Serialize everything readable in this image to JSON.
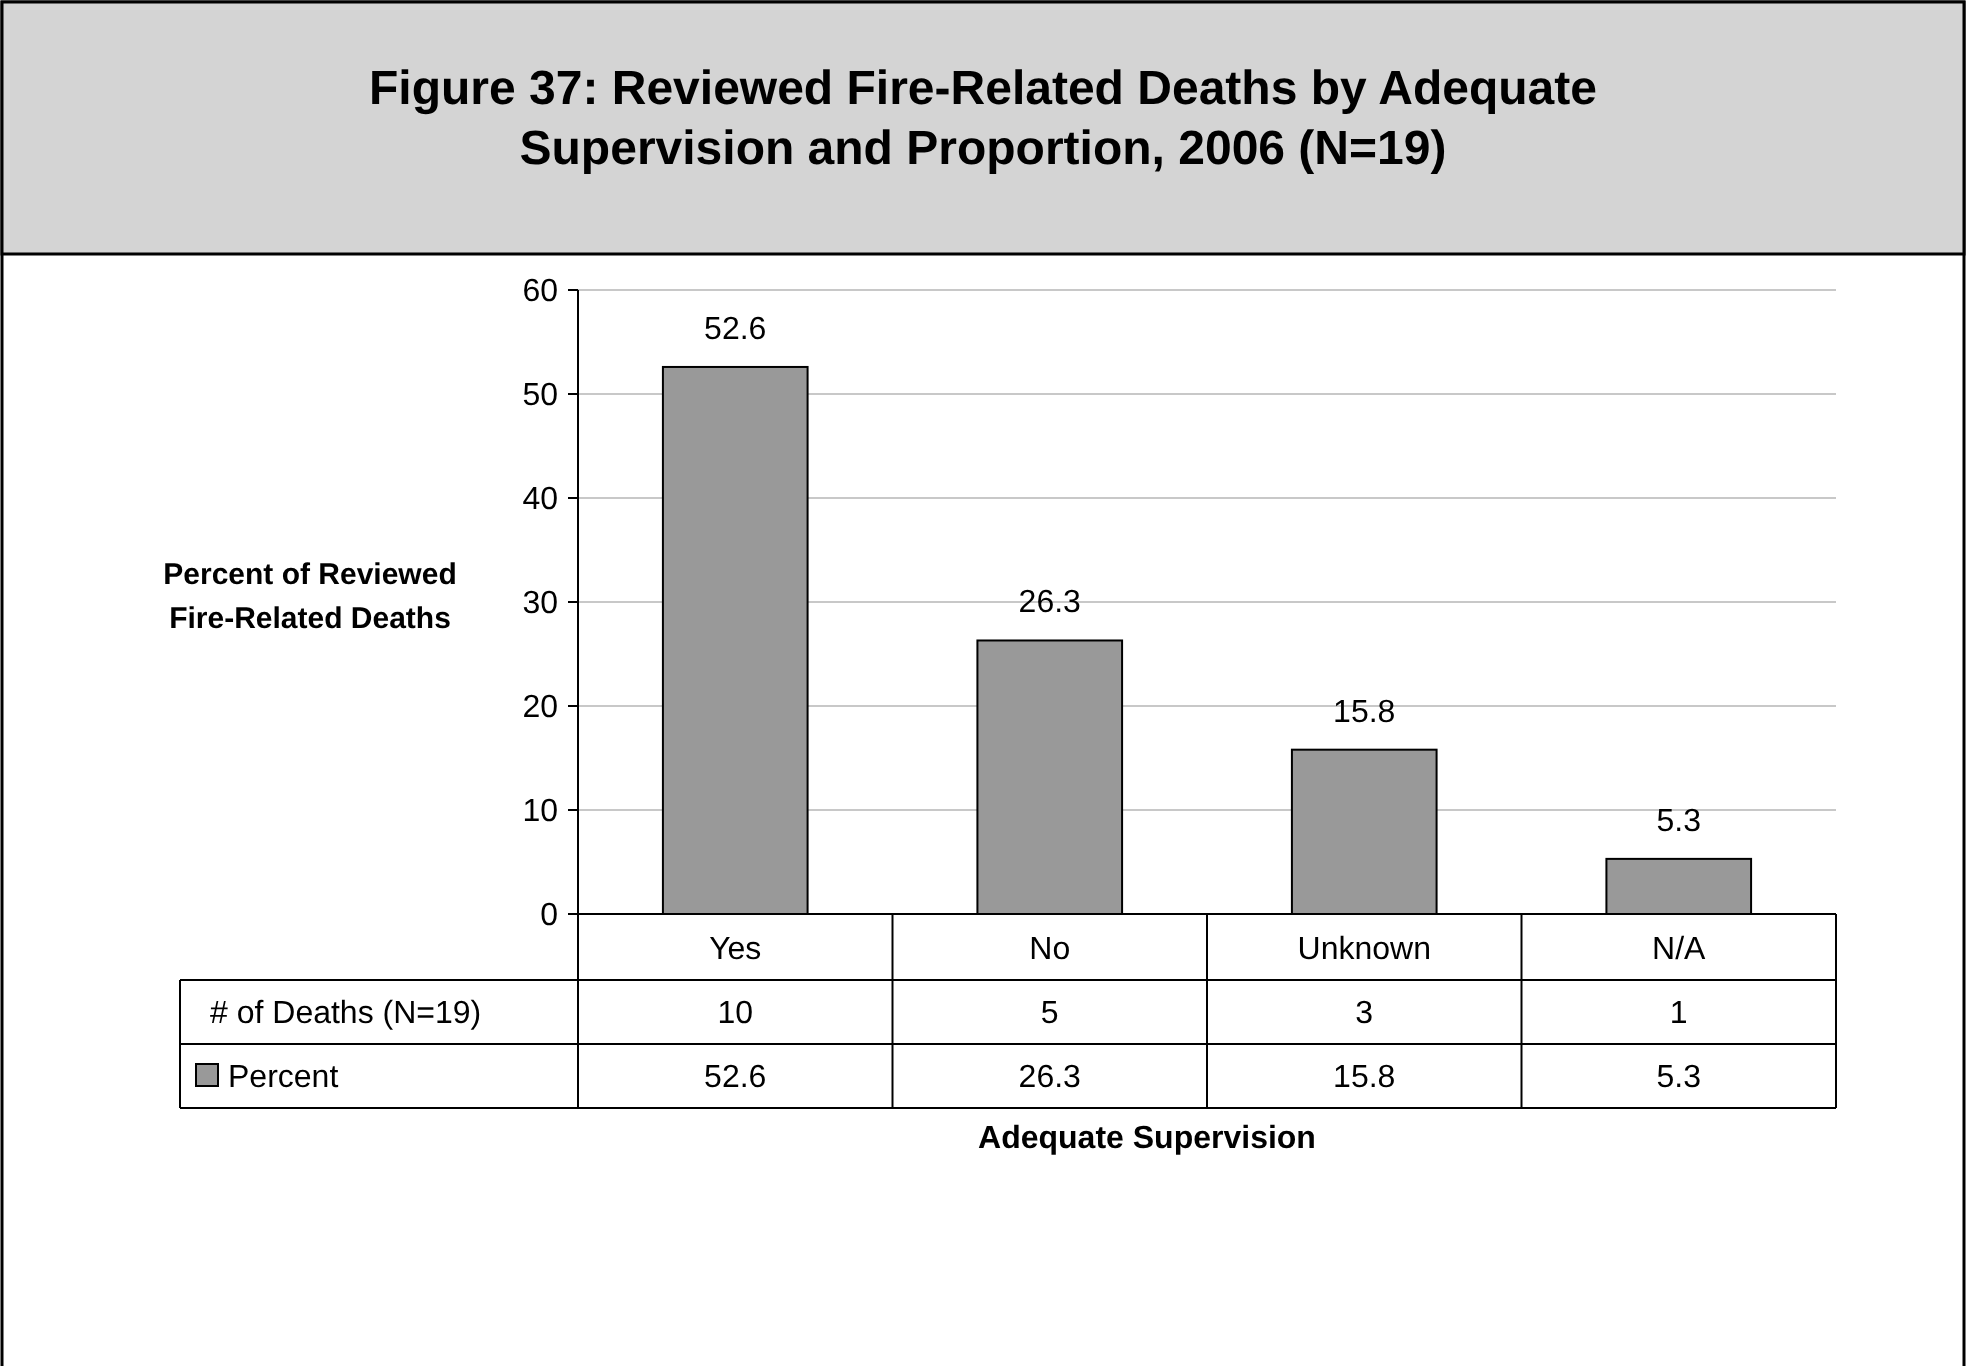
{
  "chart_data": {
    "type": "bar",
    "title": "Figure 37: Reviewed Fire-Related Deaths by Adequate Supervision and Proportion, 2006 (N=19)",
    "xlabel": "Adequate Supervision",
    "ylabel": "Percent of Reviewed Fire-Related Deaths",
    "categories": [
      "Yes",
      "No",
      "Unknown",
      "N/A"
    ],
    "series": [
      {
        "name": "Percent",
        "color": "#999999",
        "values": [
          52.6,
          26.3,
          15.8,
          5.3
        ],
        "value_labels": [
          "52.6",
          "26.3",
          "15.8",
          "5.3"
        ]
      }
    ],
    "ylim": [
      0,
      60
    ],
    "yticks": [
      0,
      10,
      20,
      30,
      40,
      50,
      60
    ],
    "grid": "y",
    "legend": "bottom",
    "annotations": [
      "# of Deaths (N=19)",
      "10",
      "5",
      "3",
      "1",
      "52.6",
      "26.3",
      "15.8",
      "5.3"
    ]
  }
}
